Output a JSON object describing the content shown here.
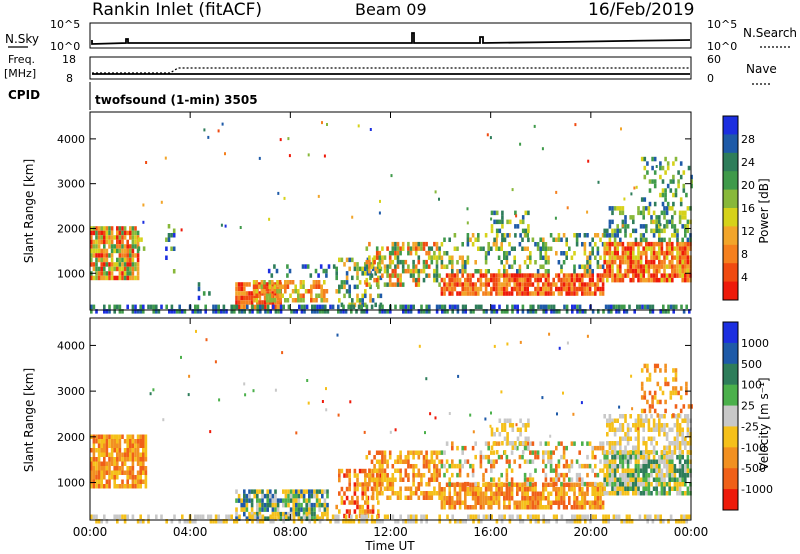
{
  "header": {
    "station": "Rankin Inlet (fitACF)",
    "beam": "Beam 09",
    "date": "16/Feb/2019"
  },
  "top_panels": {
    "nsky_label": "N.Sky",
    "nsky_ticks": [
      "10^5",
      "10^0"
    ],
    "nsearch_label": "N.Search",
    "nsearch_ticks": [
      "10^5",
      "10^0"
    ],
    "freq_label": "Freq.",
    "freq_unit": "[MHz]",
    "freq_ticks": [
      "18",
      "8"
    ],
    "nave_label": "Nave",
    "nave_ticks": [
      "60",
      "0"
    ],
    "cpid_label": "CPID",
    "cpid_text": "twofsound (1-min) 3505"
  },
  "colors": {
    "power": [
      "#1c2fe0",
      "#1e5aa8",
      "#2e7d5a",
      "#3f9a4a",
      "#88b83a",
      "#d6d21a",
      "#f2a52a",
      "#f5801e",
      "#f04a10",
      "#ee1a0a"
    ],
    "velocity": [
      "#1c2fe0",
      "#1e5aa8",
      "#2e7d5a",
      "#4bb04b",
      "#c8c8c8",
      "#f5c01a",
      "#f29020",
      "#f06018",
      "#ee1a0a"
    ]
  },
  "chart_data": [
    {
      "type": "heatmap",
      "name": "power",
      "ylabel": "Slant Range [km]",
      "xlabel": "Time UT",
      "x_ticks": [
        "00:00",
        "04:00",
        "08:00",
        "12:00",
        "16:00",
        "20:00",
        "00:00"
      ],
      "y_ticks": [
        "1000",
        "2000",
        "3000",
        "4000"
      ],
      "ylim": [
        180,
        4600
      ],
      "xlim_hours": [
        0,
        24
      ],
      "colorbar_label": "Power [dB]",
      "colorbar_ticks": [
        "28",
        "24",
        "20",
        "16",
        "12",
        "8",
        "4"
      ],
      "regions": [
        {
          "t0": 0.0,
          "t1": 1.9,
          "r0": 900,
          "r1": 2050,
          "c": [
            3,
            9
          ],
          "d": 0.85
        },
        {
          "t0": 1.9,
          "t1": 2.2,
          "r0": 1500,
          "r1": 1800,
          "c": [
            2,
            5
          ],
          "d": 0.5
        },
        {
          "t0": 3.0,
          "t1": 3.4,
          "r0": 1000,
          "r1": 2100,
          "c": [
            0,
            4
          ],
          "d": 0.25
        },
        {
          "t0": 4.3,
          "t1": 4.8,
          "r0": 400,
          "r1": 800,
          "c": [
            0,
            3
          ],
          "d": 0.25
        },
        {
          "t0": 5.8,
          "t1": 7.6,
          "r0": 250,
          "r1": 800,
          "c": [
            6,
            9
          ],
          "d": 0.9
        },
        {
          "t0": 6.5,
          "t1": 9.5,
          "r0": 400,
          "r1": 850,
          "c": [
            4,
            8
          ],
          "d": 0.65
        },
        {
          "t0": 7.0,
          "t1": 9.8,
          "r0": 900,
          "r1": 1200,
          "c": [
            0,
            3
          ],
          "d": 0.25
        },
        {
          "t0": 9.8,
          "t1": 11.6,
          "r0": 250,
          "r1": 1350,
          "c": [
            1,
            6
          ],
          "d": 0.4
        },
        {
          "t0": 11.0,
          "t1": 14.0,
          "r0": 700,
          "r1": 1700,
          "c": [
            2,
            8
          ],
          "d": 0.55
        },
        {
          "t0": 14.0,
          "t1": 20.5,
          "r0": 500,
          "r1": 1000,
          "c": [
            6,
            9
          ],
          "d": 0.85
        },
        {
          "t0": 14.0,
          "t1": 20.5,
          "r0": 1000,
          "r1": 1900,
          "c": [
            1,
            6
          ],
          "d": 0.35
        },
        {
          "t0": 16.0,
          "t1": 17.5,
          "r0": 1700,
          "r1": 2400,
          "c": [
            1,
            5
          ],
          "d": 0.35
        },
        {
          "t0": 20.5,
          "t1": 24.0,
          "r0": 800,
          "r1": 1700,
          "c": [
            5,
            9
          ],
          "d": 0.85
        },
        {
          "t0": 20.5,
          "t1": 24.0,
          "r0": 1700,
          "r1": 2500,
          "c": [
            1,
            5
          ],
          "d": 0.45
        },
        {
          "t0": 22.0,
          "t1": 24.0,
          "r0": 2500,
          "r1": 3600,
          "c": [
            1,
            5
          ],
          "d": 0.25
        },
        {
          "t0": 0.0,
          "t1": 24.0,
          "r0": 180,
          "r1": 300,
          "c": [
            0,
            3
          ],
          "d": 0.6
        }
      ]
    },
    {
      "type": "heatmap",
      "name": "velocity",
      "ylabel": "Slant Range [km]",
      "xlabel": "Time UT",
      "x_ticks": [
        "00:00",
        "04:00",
        "08:00",
        "12:00",
        "16:00",
        "20:00",
        "00:00"
      ],
      "y_ticks": [
        "1000",
        "2000",
        "3000",
        "4000"
      ],
      "ylim": [
        180,
        4600
      ],
      "xlim_hours": [
        0,
        24
      ],
      "colorbar_label": "Velocity [m s⁻¹]",
      "colorbar_ticks": [
        "1000",
        "500",
        "100",
        "25",
        "-25",
        "-100",
        "-500",
        "-1000"
      ],
      "regions": [
        {
          "t0": 0.0,
          "t1": 2.2,
          "r0": 900,
          "r1": 2050,
          "c": [
            5,
            7
          ],
          "d": 0.85
        },
        {
          "t0": 5.8,
          "t1": 9.5,
          "r0": 250,
          "r1": 850,
          "c": [
            1,
            5
          ],
          "d": 0.75
        },
        {
          "t0": 9.8,
          "t1": 11.6,
          "r0": 250,
          "r1": 1300,
          "c": [
            5,
            8
          ],
          "d": 0.45
        },
        {
          "t0": 11.0,
          "t1": 14.0,
          "r0": 700,
          "r1": 1700,
          "c": [
            5,
            7
          ],
          "d": 0.55
        },
        {
          "t0": 14.0,
          "t1": 20.5,
          "r0": 500,
          "r1": 1000,
          "c": [
            5,
            7
          ],
          "d": 0.8
        },
        {
          "t0": 14.0,
          "t1": 20.5,
          "r0": 1000,
          "r1": 1900,
          "c": [
            3,
            7
          ],
          "d": 0.35
        },
        {
          "t0": 16.0,
          "t1": 17.5,
          "r0": 1700,
          "r1": 2400,
          "c": [
            4,
            5
          ],
          "d": 0.35
        },
        {
          "t0": 20.5,
          "t1": 24.0,
          "r0": 800,
          "r1": 1700,
          "c": [
            2,
            5
          ],
          "d": 0.85
        },
        {
          "t0": 20.5,
          "t1": 24.0,
          "r0": 1700,
          "r1": 2500,
          "c": [
            4,
            5
          ],
          "d": 0.55
        },
        {
          "t0": 22.0,
          "t1": 24.0,
          "r0": 2500,
          "r1": 3600,
          "c": [
            5,
            7
          ],
          "d": 0.25
        },
        {
          "t0": 0.0,
          "t1": 24.0,
          "r0": 180,
          "r1": 300,
          "c": [
            4,
            5
          ],
          "d": 0.5
        }
      ]
    }
  ]
}
